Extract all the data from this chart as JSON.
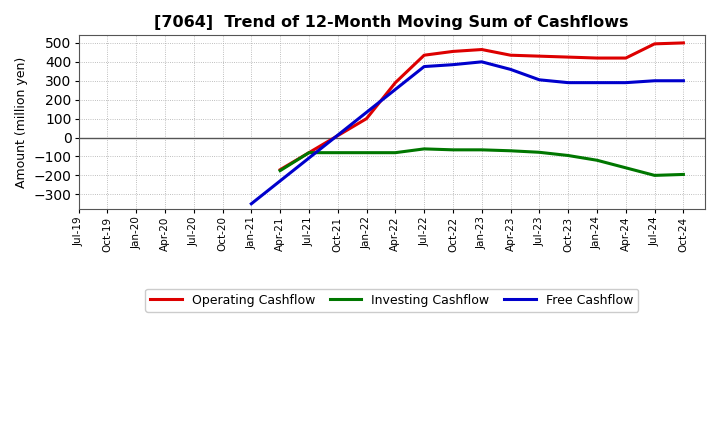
{
  "title": "[7064]  Trend of 12-Month Moving Sum of Cashflows",
  "ylabel": "Amount (million yen)",
  "ylim": [
    -380,
    540
  ],
  "yticks": [
    -300,
    -200,
    -100,
    0,
    100,
    200,
    300,
    400,
    500
  ],
  "background_color": "#ffffff",
  "plot_bg_color": "#ffffff",
  "grid_color": "#aaaaaa",
  "x_labels": [
    "Jul-19",
    "Oct-19",
    "Jan-20",
    "Apr-20",
    "Jul-20",
    "Oct-20",
    "Jan-21",
    "Apr-21",
    "Jul-21",
    "Oct-21",
    "Jan-22",
    "Apr-22",
    "Jul-22",
    "Oct-22",
    "Jan-23",
    "Apr-23",
    "Jul-23",
    "Oct-23",
    "Jan-24",
    "Apr-24",
    "Jul-24",
    "Oct-24"
  ],
  "operating": [
    null,
    null,
    null,
    null,
    null,
    null,
    null,
    -170,
    -80,
    10,
    100,
    290,
    435,
    455,
    465,
    435,
    430,
    425,
    420,
    420,
    495,
    500
  ],
  "investing": [
    null,
    null,
    null,
    null,
    null,
    null,
    null,
    -175,
    -80,
    -80,
    -80,
    -80,
    -60,
    -65,
    -65,
    -70,
    -78,
    -95,
    -120,
    -160,
    -200,
    -195
  ],
  "free": [
    null,
    null,
    null,
    null,
    null,
    null,
    -350,
    null,
    null,
    null,
    null,
    null,
    375,
    385,
    400,
    360,
    305,
    290,
    290,
    290,
    300,
    300
  ],
  "operating_color": "#dd0000",
  "investing_color": "#007700",
  "free_color": "#0000cc",
  "legend_labels": [
    "Operating Cashflow",
    "Investing Cashflow",
    "Free Cashflow"
  ],
  "line_width": 2.2
}
